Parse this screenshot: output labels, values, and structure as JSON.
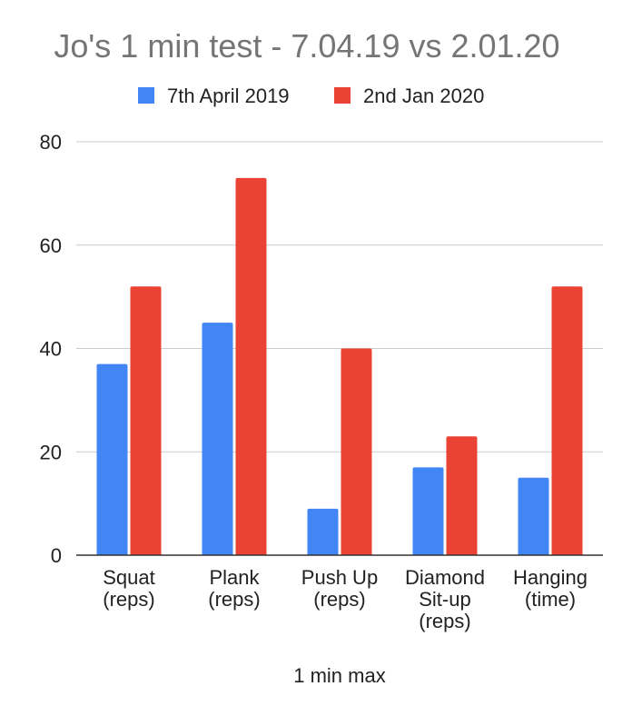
{
  "chart_data": {
    "type": "bar",
    "title": "Jo's 1 min test - 7.04.19 vs 2.01.20",
    "xlabel": "1 min max",
    "ylabel": "",
    "ylim": [
      0,
      80
    ],
    "yticks": [
      0,
      20,
      40,
      60,
      80
    ],
    "grid": true,
    "legend_position": "top",
    "categories": [
      [
        "Squat",
        "(reps)"
      ],
      [
        "Plank",
        "(reps)"
      ],
      [
        "Push Up",
        "(reps)"
      ],
      [
        "Diamond",
        "Sit-up",
        "(reps)"
      ],
      [
        "Hanging",
        "(time)"
      ]
    ],
    "series": [
      {
        "name": "7th April 2019",
        "color": "#4285f4",
        "values": [
          37,
          45,
          9,
          17,
          15
        ]
      },
      {
        "name": "2nd Jan 2020",
        "color": "#ea4335",
        "values": [
          52,
          73,
          40,
          23,
          52
        ]
      }
    ]
  }
}
